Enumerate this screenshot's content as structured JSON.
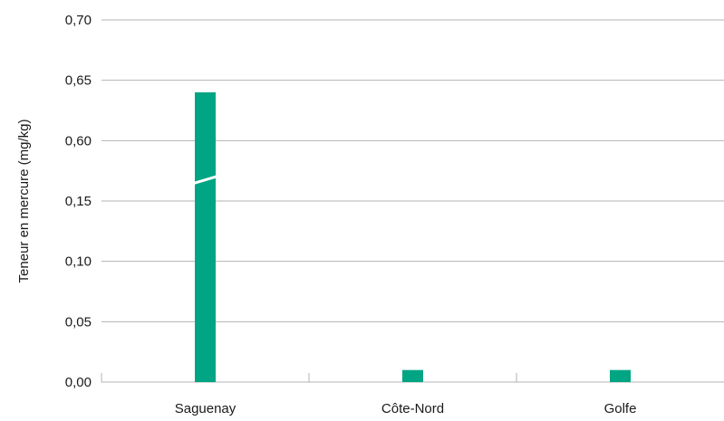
{
  "chart_data": {
    "type": "bar",
    "categories": [
      "Saguenay",
      "Côte-Nord",
      "Golfe"
    ],
    "values": [
      0.64,
      0.01,
      0.01
    ],
    "ylabel": "Teneur en mercure (mg/kg)",
    "xlabel": "",
    "ylim": [
      0,
      0.7
    ],
    "yticks": [
      "0,00",
      "0,05",
      "0,10",
      "0,15",
      "0,60",
      "0,65",
      "0,70"
    ],
    "axis_break": {
      "between": [
        "0,15",
        "0,60"
      ]
    },
    "grid": true,
    "legend": "none",
    "colors": {
      "bar": "#00a584",
      "grid": "#b3b3b3"
    }
  }
}
